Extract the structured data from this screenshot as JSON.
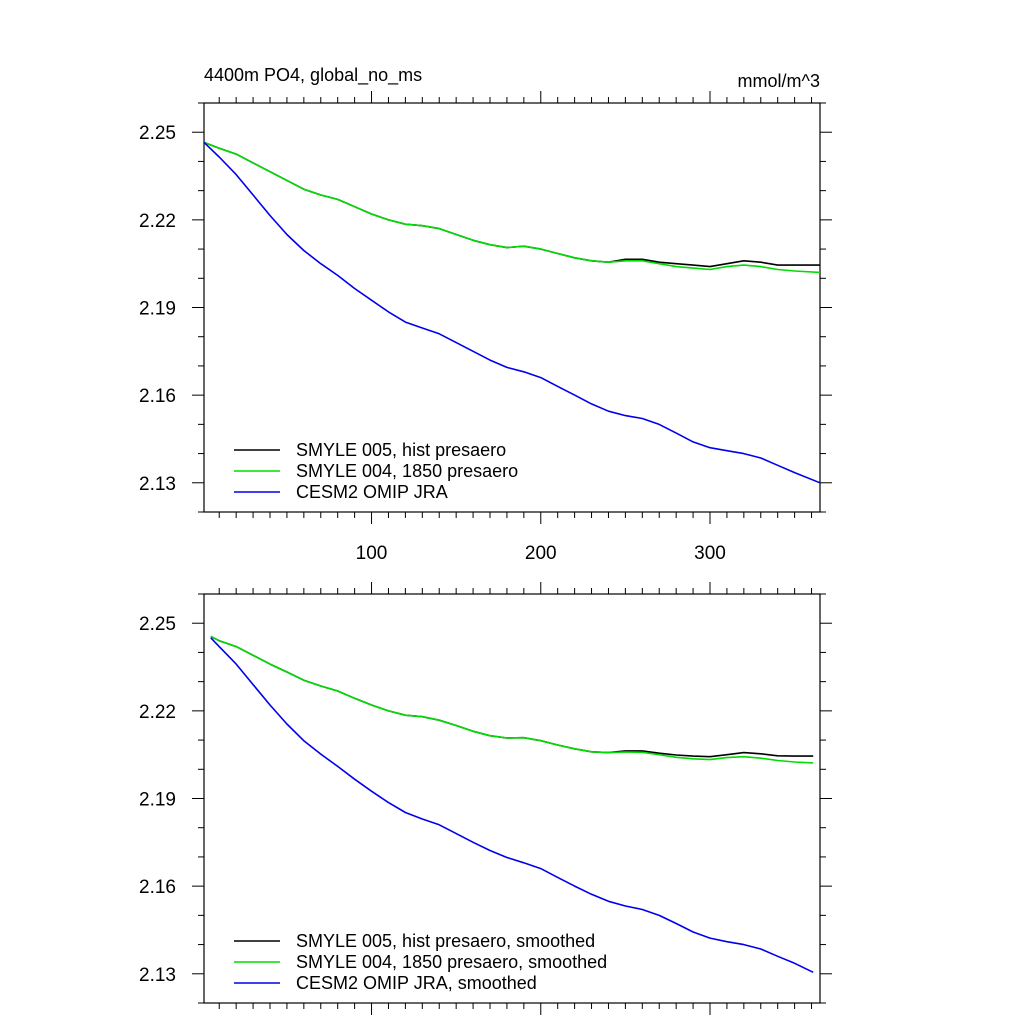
{
  "title_left": "4400m PO4, global_no_ms",
  "title_right": "mmol/m^3",
  "colors": {
    "hist": "#000000",
    "p1850": "#00dd00",
    "omip": "#0000ee"
  },
  "chart_data": [
    {
      "type": "line",
      "title": "4400m PO4, global_no_ms",
      "units": "mmol/m^3",
      "xlabel": "",
      "ylabel": "",
      "xlim": [
        1,
        365
      ],
      "ylim": [
        2.12,
        2.26
      ],
      "xticks": [
        100,
        200,
        300
      ],
      "yticks": [
        2.13,
        2.16,
        2.19,
        2.22,
        2.25
      ],
      "xtick_labels": [
        "100",
        "200",
        "300"
      ],
      "ytick_labels": [
        "2.13",
        "2.16",
        "2.19",
        "2.22",
        "2.25"
      ],
      "legend_position": "bottom-left",
      "x": [
        1,
        10,
        20,
        30,
        40,
        50,
        60,
        70,
        80,
        90,
        100,
        110,
        120,
        130,
        140,
        150,
        160,
        170,
        180,
        190,
        200,
        210,
        220,
        230,
        240,
        250,
        260,
        270,
        280,
        290,
        300,
        310,
        320,
        330,
        340,
        350,
        365
      ],
      "series": [
        {
          "name": "SMYLE 005, hist presaero",
          "color": "#000000",
          "values": [
            2.2465,
            2.2445,
            2.2425,
            2.2395,
            2.2365,
            2.2335,
            2.2305,
            2.2285,
            2.227,
            2.2245,
            2.222,
            2.22,
            2.2185,
            2.218,
            2.217,
            2.215,
            2.213,
            2.2115,
            2.2105,
            2.211,
            2.21,
            2.2085,
            2.207,
            2.206,
            2.2055,
            2.2065,
            2.2065,
            2.2055,
            2.205,
            2.2045,
            2.204,
            2.205,
            2.206,
            2.2055,
            2.2045,
            2.2045,
            2.2045
          ]
        },
        {
          "name": "SMYLE 004, 1850 presaero",
          "color": "#00dd00",
          "values": [
            2.2465,
            2.2445,
            2.2425,
            2.2395,
            2.2365,
            2.2335,
            2.2305,
            2.2285,
            2.227,
            2.2245,
            2.222,
            2.22,
            2.2185,
            2.218,
            2.217,
            2.215,
            2.213,
            2.2115,
            2.2105,
            2.211,
            2.21,
            2.2085,
            2.207,
            2.206,
            2.2055,
            2.206,
            2.206,
            2.205,
            2.204,
            2.2035,
            2.203,
            2.204,
            2.2045,
            2.204,
            2.203,
            2.2025,
            2.202
          ]
        },
        {
          "name": "CESM2 OMIP JRA",
          "color": "#0000ee",
          "values": [
            2.2465,
            2.2415,
            2.2355,
            2.2285,
            2.2215,
            2.215,
            2.2095,
            2.205,
            2.201,
            2.1965,
            2.1925,
            2.1885,
            2.185,
            2.183,
            2.181,
            2.178,
            2.175,
            2.172,
            2.1695,
            2.168,
            2.166,
            2.163,
            2.16,
            2.157,
            2.1545,
            2.153,
            2.152,
            2.15,
            2.147,
            2.144,
            2.142,
            2.141,
            2.14,
            2.1385,
            2.136,
            2.1335,
            2.13
          ]
        }
      ]
    },
    {
      "type": "line",
      "title": "",
      "xlabel": "",
      "ylabel": "",
      "xlim": [
        1,
        365
      ],
      "ylim": [
        2.12,
        2.26
      ],
      "xticks": [
        100,
        200,
        300
      ],
      "yticks": [
        2.13,
        2.16,
        2.19,
        2.22,
        2.25
      ],
      "xtick_labels": [],
      "ytick_labels": [
        "2.13",
        "2.16",
        "2.19",
        "2.22",
        "2.25"
      ],
      "legend_position": "bottom-left",
      "x": [
        5,
        10,
        20,
        30,
        40,
        50,
        60,
        70,
        80,
        90,
        100,
        110,
        120,
        130,
        140,
        150,
        160,
        170,
        180,
        190,
        200,
        210,
        220,
        230,
        240,
        250,
        260,
        270,
        280,
        290,
        300,
        310,
        320,
        330,
        340,
        350,
        361
      ],
      "series": [
        {
          "name": "SMYLE 005, hist presaero, smoothed",
          "color": "#000000",
          "values": [
            2.2455,
            2.244,
            2.242,
            2.239,
            2.236,
            2.2333,
            2.2305,
            2.2285,
            2.2268,
            2.2243,
            2.222,
            2.22,
            2.2185,
            2.218,
            2.2168,
            2.215,
            2.213,
            2.2115,
            2.2107,
            2.2108,
            2.2098,
            2.2083,
            2.207,
            2.206,
            2.2057,
            2.2063,
            2.2063,
            2.2055,
            2.2049,
            2.2045,
            2.2043,
            2.205,
            2.2057,
            2.2053,
            2.2046,
            2.2045,
            2.2045
          ]
        },
        {
          "name": "SMYLE 004, 1850 presaero, smoothed",
          "color": "#00dd00",
          "values": [
            2.2455,
            2.244,
            2.242,
            2.239,
            2.236,
            2.2333,
            2.2305,
            2.2285,
            2.2268,
            2.2243,
            2.222,
            2.22,
            2.2185,
            2.218,
            2.2168,
            2.215,
            2.213,
            2.2115,
            2.2107,
            2.2108,
            2.2098,
            2.2083,
            2.207,
            2.206,
            2.2057,
            2.2059,
            2.2058,
            2.205,
            2.2041,
            2.2036,
            2.2033,
            2.204,
            2.2043,
            2.2038,
            2.203,
            2.2025,
            2.2022
          ]
        },
        {
          "name": "CESM2 OMIP JRA, smoothed",
          "color": "#0000ee",
          "values": [
            2.245,
            2.242,
            2.236,
            2.229,
            2.222,
            2.2155,
            2.2098,
            2.2052,
            2.201,
            2.1966,
            2.1925,
            2.1886,
            2.1852,
            2.183,
            2.181,
            2.178,
            2.175,
            2.1722,
            2.1698,
            2.168,
            2.166,
            2.163,
            2.16,
            2.1572,
            2.1548,
            2.1532,
            2.152,
            2.15,
            2.1472,
            2.1443,
            2.1422,
            2.141,
            2.14,
            2.1385,
            2.136,
            2.1336,
            2.1305
          ]
        }
      ]
    }
  ]
}
